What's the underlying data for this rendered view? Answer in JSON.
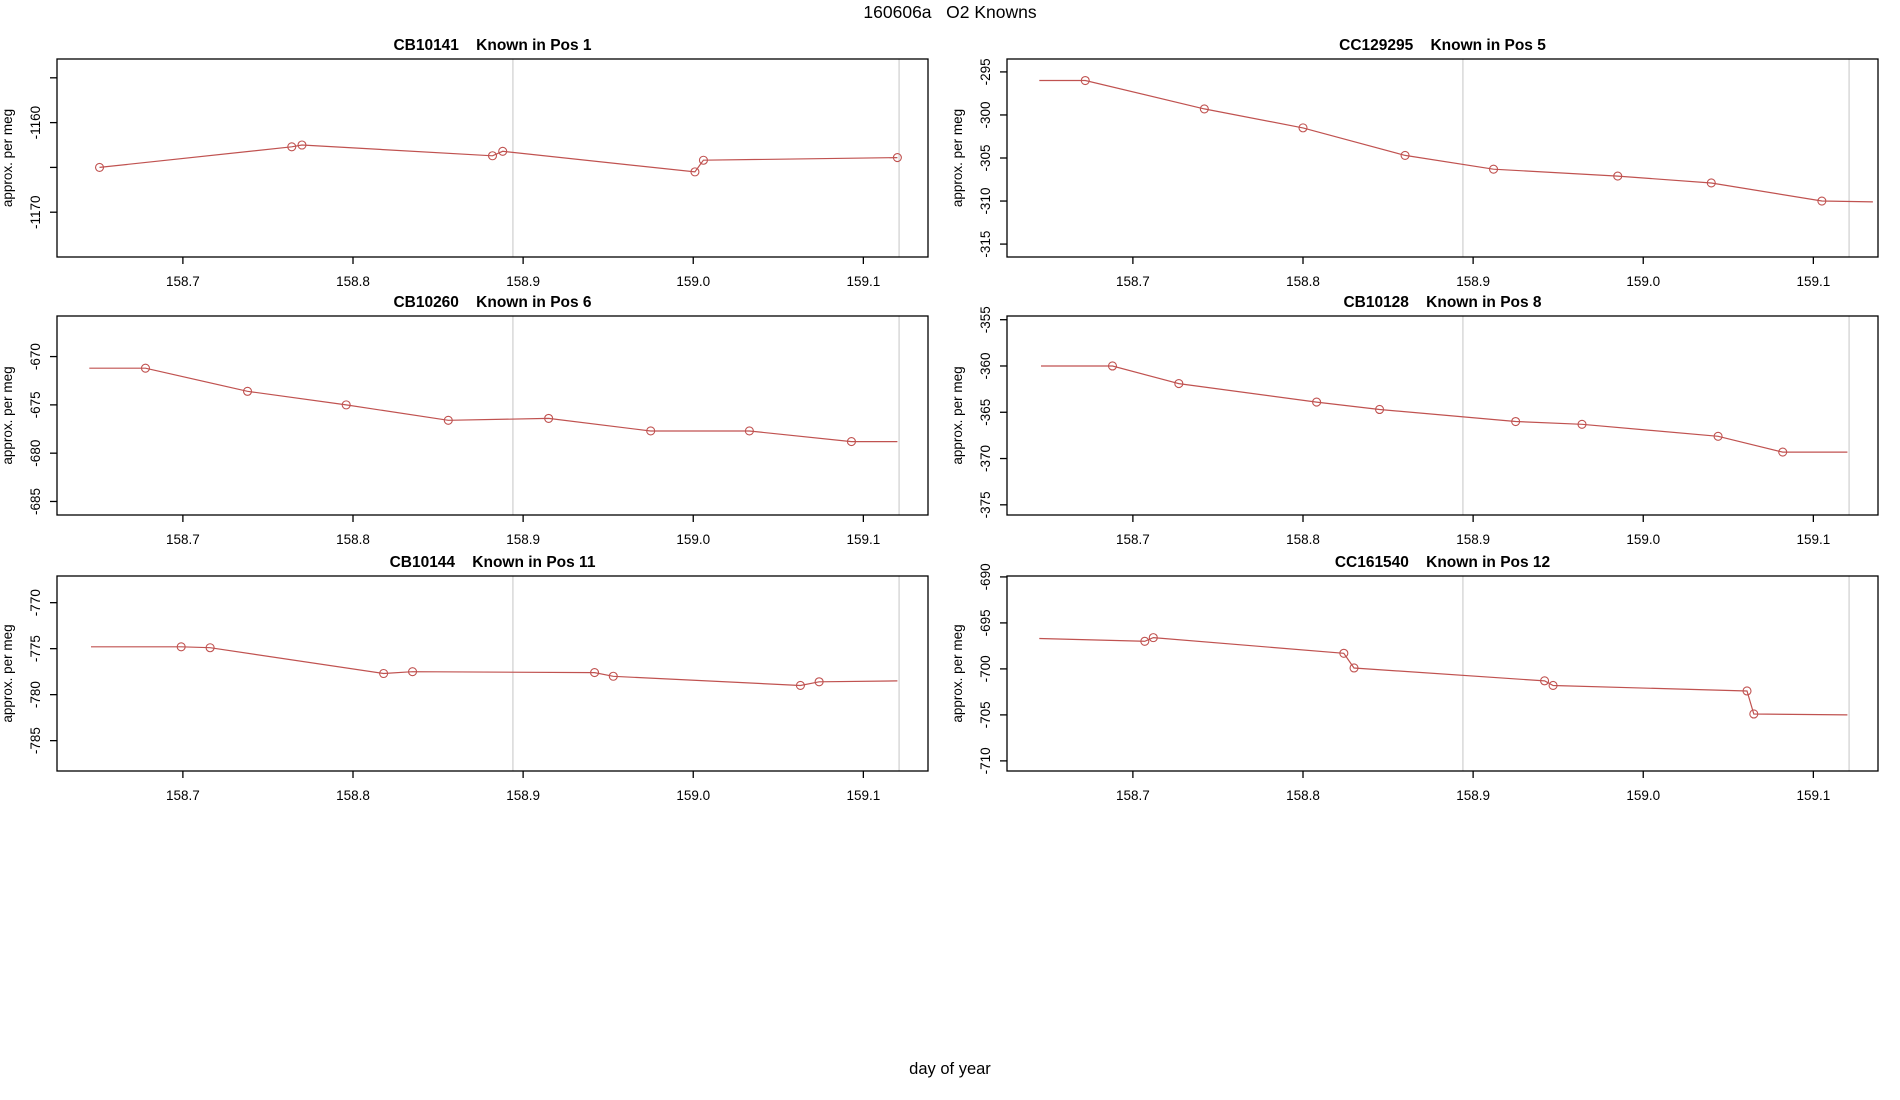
{
  "page": {
    "title": "160606a   O2 Knowns",
    "xlabel": "day of year"
  },
  "colors": {
    "series_line": "#c05250",
    "gridline": "#d2d2d2",
    "axis": "#000000"
  },
  "chart_data": [
    {
      "type": "line",
      "id": "CB10141",
      "title": "CB10141    Known in Pos 1",
      "ylabel": "approx. per meg",
      "xlim": [
        158.626,
        159.138
      ],
      "ylim": [
        -1175.0,
        -1152.9
      ],
      "xticks": [
        158.7,
        158.8,
        158.9,
        159.0,
        159.1
      ],
      "xtick_labels": [
        "158.7",
        "158.8",
        "158.9",
        "159.0",
        "159.1"
      ],
      "yticks": [
        -1155,
        -1160,
        -1165,
        -1170
      ],
      "ytick_labels": [
        "",
        "-1160",
        "",
        "-1170"
      ],
      "vlines": [
        158.894,
        159.121
      ],
      "points": [
        [
          158.651,
          -1165.0,
          1
        ],
        [
          158.764,
          -1162.7,
          1
        ],
        [
          158.77,
          -1162.5,
          1
        ],
        [
          158.882,
          -1163.7,
          1
        ],
        [
          158.888,
          -1163.2,
          1
        ],
        [
          159.001,
          -1165.5,
          1
        ],
        [
          159.006,
          -1164.2,
          1
        ],
        [
          159.12,
          -1163.9,
          1
        ]
      ]
    },
    {
      "type": "line",
      "id": "CC129295",
      "title": "CC129295    Known in Pos 5",
      "ylabel": "approx. per meg",
      "xlim": [
        158.626,
        159.138
      ],
      "ylim": [
        -316.5,
        -293.5
      ],
      "xticks": [
        158.7,
        158.8,
        158.9,
        159.0,
        159.1
      ],
      "xtick_labels": [
        "158.7",
        "158.8",
        "158.9",
        "159.0",
        "159.1"
      ],
      "yticks": [
        -295,
        -300,
        -305,
        -310,
        -315
      ],
      "ytick_labels": [
        "-295",
        "-300",
        "-305",
        "-310",
        "-315"
      ],
      "vlines": [
        158.894,
        159.121
      ],
      "points": [
        [
          158.645,
          -296.0,
          0
        ],
        [
          158.672,
          -296.0,
          1
        ],
        [
          158.742,
          -299.3,
          1
        ],
        [
          158.8,
          -301.5,
          1
        ],
        [
          158.86,
          -304.7,
          1
        ],
        [
          158.912,
          -306.3,
          1
        ],
        [
          158.985,
          -307.1,
          1
        ],
        [
          159.04,
          -307.9,
          1
        ],
        [
          159.105,
          -310.0,
          1
        ],
        [
          159.135,
          -310.1,
          0
        ]
      ]
    },
    {
      "type": "line",
      "id": "CB10260",
      "title": "CB10260    Known in Pos 6",
      "ylabel": "approx. per meg",
      "xlim": [
        158.626,
        159.138
      ],
      "ylim": [
        -686.4,
        -665.8
      ],
      "xticks": [
        158.7,
        158.8,
        158.9,
        159.0,
        159.1
      ],
      "xtick_labels": [
        "158.7",
        "158.8",
        "158.9",
        "159.0",
        "159.1"
      ],
      "yticks": [
        -670,
        -675,
        -680,
        -685
      ],
      "ytick_labels": [
        "-670",
        "-675",
        "-680",
        "-685"
      ],
      "vlines": [
        158.894,
        159.121
      ],
      "points": [
        [
          158.645,
          -671.2,
          0
        ],
        [
          158.678,
          -671.2,
          1
        ],
        [
          158.738,
          -673.6,
          1
        ],
        [
          158.796,
          -675.0,
          1
        ],
        [
          158.856,
          -676.6,
          1
        ],
        [
          158.915,
          -676.4,
          1
        ],
        [
          158.975,
          -677.7,
          1
        ],
        [
          159.033,
          -677.7,
          1
        ],
        [
          159.093,
          -678.8,
          1
        ],
        [
          159.12,
          -678.8,
          0
        ]
      ]
    },
    {
      "type": "line",
      "id": "CB10128",
      "title": "CB10128    Known in Pos 8",
      "ylabel": "approx. per meg",
      "xlim": [
        158.626,
        159.138
      ],
      "ylim": [
        -376.1,
        -354.6
      ],
      "xticks": [
        158.7,
        158.8,
        158.9,
        159.0,
        159.1
      ],
      "xtick_labels": [
        "158.7",
        "158.8",
        "158.9",
        "159.0",
        "159.1"
      ],
      "yticks": [
        -355,
        -360,
        -365,
        -370,
        -375
      ],
      "ytick_labels": [
        "-355",
        "-360",
        "-365",
        "-370",
        "-375"
      ],
      "vlines": [
        158.894,
        159.121
      ],
      "points": [
        [
          158.646,
          -360.0,
          0
        ],
        [
          158.688,
          -360.0,
          1
        ],
        [
          158.727,
          -361.9,
          1
        ],
        [
          158.808,
          -363.9,
          1
        ],
        [
          158.845,
          -364.7,
          1
        ],
        [
          158.925,
          -366.0,
          1
        ],
        [
          158.964,
          -366.3,
          1
        ],
        [
          159.044,
          -367.6,
          1
        ],
        [
          159.082,
          -369.3,
          1
        ],
        [
          159.12,
          -369.3,
          0
        ]
      ]
    },
    {
      "type": "line",
      "id": "CB10144",
      "title": "CB10144    Known in Pos 11",
      "ylabel": "approx. per meg",
      "xlim": [
        158.626,
        159.138
      ],
      "ylim": [
        -788.3,
        -767.1
      ],
      "xticks": [
        158.7,
        158.8,
        158.9,
        159.0,
        159.1
      ],
      "xtick_labels": [
        "158.7",
        "158.8",
        "158.9",
        "159.0",
        "159.1"
      ],
      "yticks": [
        -770,
        -775,
        -780,
        -785
      ],
      "ytick_labels": [
        "-770",
        "-775",
        "-780",
        "-785"
      ],
      "vlines": [
        158.894,
        159.121
      ],
      "points": [
        [
          158.646,
          -774.8,
          0
        ],
        [
          158.699,
          -774.8,
          1
        ],
        [
          158.716,
          -774.9,
          1
        ],
        [
          158.818,
          -777.7,
          1
        ],
        [
          158.835,
          -777.5,
          1
        ],
        [
          158.942,
          -777.6,
          1
        ],
        [
          158.953,
          -778.0,
          1
        ],
        [
          159.063,
          -779.0,
          1
        ],
        [
          159.074,
          -778.6,
          1
        ],
        [
          159.12,
          -778.5,
          0
        ]
      ]
    },
    {
      "type": "line",
      "id": "CC161540",
      "title": "CC161540    Known in Pos 12",
      "ylabel": "approx. per meg",
      "xlim": [
        158.626,
        159.138
      ],
      "ylim": [
        -711.1,
        -689.9
      ],
      "xticks": [
        158.7,
        158.8,
        158.9,
        159.0,
        159.1
      ],
      "xtick_labels": [
        "158.7",
        "158.8",
        "158.9",
        "159.0",
        "159.1"
      ],
      "yticks": [
        -690,
        -695,
        -700,
        -705,
        -710
      ],
      "ytick_labels": [
        "-690",
        "-695",
        "-700",
        "-705",
        "-710"
      ],
      "vlines": [
        158.894,
        159.121
      ],
      "points": [
        [
          158.645,
          -696.7,
          0
        ],
        [
          158.707,
          -697.0,
          1
        ],
        [
          158.712,
          -696.6,
          1
        ],
        [
          158.824,
          -698.3,
          1
        ],
        [
          158.83,
          -699.9,
          1
        ],
        [
          158.942,
          -701.3,
          1
        ],
        [
          158.947,
          -701.8,
          1
        ],
        [
          159.061,
          -702.4,
          1
        ],
        [
          159.065,
          -704.9,
          1
        ],
        [
          159.12,
          -705.0,
          0
        ]
      ]
    }
  ]
}
